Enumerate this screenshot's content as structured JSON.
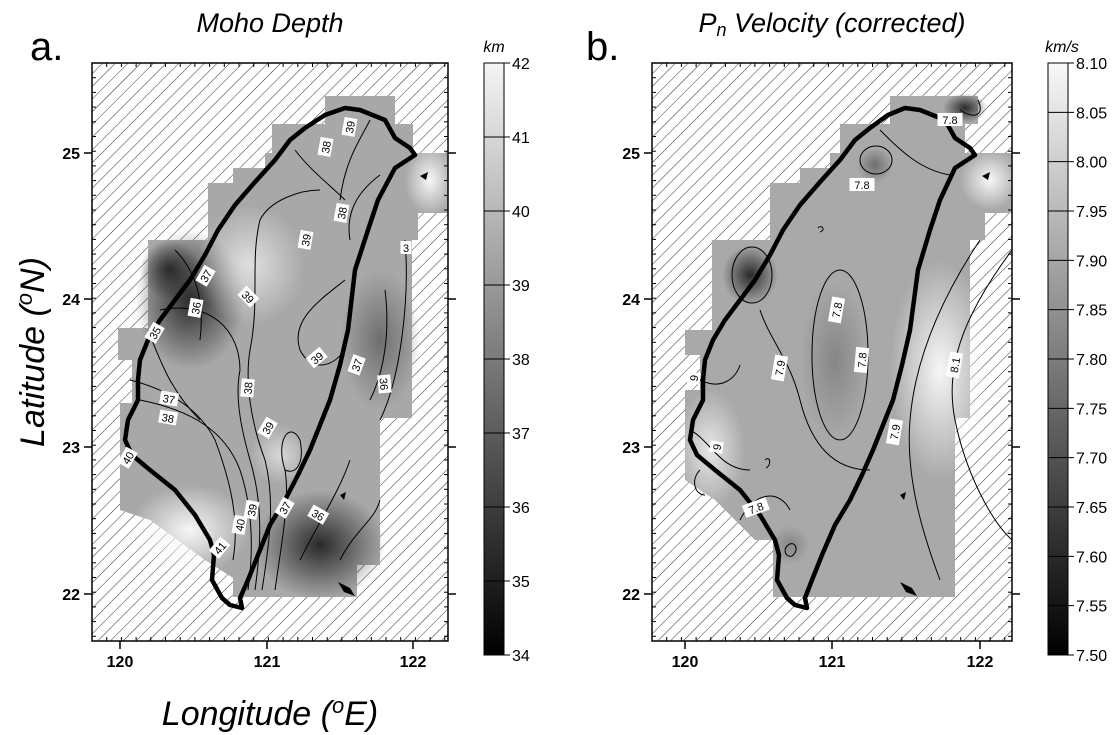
{
  "figure": {
    "ylabel_main": "Latitude (",
    "ylabel_sup": "o",
    "ylabel_end": "N)",
    "xlabel_main": "Longitude (",
    "xlabel_sup": "o",
    "xlabel_end": "E)"
  },
  "panels": [
    {
      "letter": "a.",
      "title": "Moho Depth",
      "unit": "km",
      "x_ticks": [
        "120",
        "121",
        "122"
      ],
      "y_ticks": [
        "25",
        "24",
        "23",
        "22"
      ],
      "colorbar_ticks": [
        "42",
        "41",
        "40",
        "39",
        "38",
        "37",
        "36",
        "35",
        "34"
      ],
      "colorbar_range": [
        34,
        42
      ],
      "contour_labels": [
        "39",
        "38",
        "38",
        "39",
        "37",
        "39",
        "36",
        "35",
        "39",
        "37",
        "38",
        "36",
        "37",
        "38",
        "39",
        "40",
        "39",
        "37",
        "40",
        "36",
        "41",
        "3"
      ]
    },
    {
      "letter": "b.",
      "title_main": "P",
      "title_sub": "n",
      "title_rest": " Velocity (corrected)",
      "unit": "km/s",
      "x_ticks": [
        "120",
        "121",
        "122"
      ],
      "y_ticks": [
        "25",
        "24",
        "23",
        "22"
      ],
      "colorbar_ticks": [
        "8.10",
        "8.05",
        "8.00",
        "7.95",
        "7.90",
        "7.85",
        "7.80",
        "7.75",
        "7.70",
        "7.65",
        "7.60",
        "7.55",
        "7.50"
      ],
      "colorbar_range": [
        7.5,
        8.1
      ],
      "contour_labels": [
        "7.8",
        "7.8",
        "7.8",
        "7.9",
        "7.8",
        "8.1",
        "7.9",
        "9",
        "9",
        "7.8"
      ]
    }
  ]
}
